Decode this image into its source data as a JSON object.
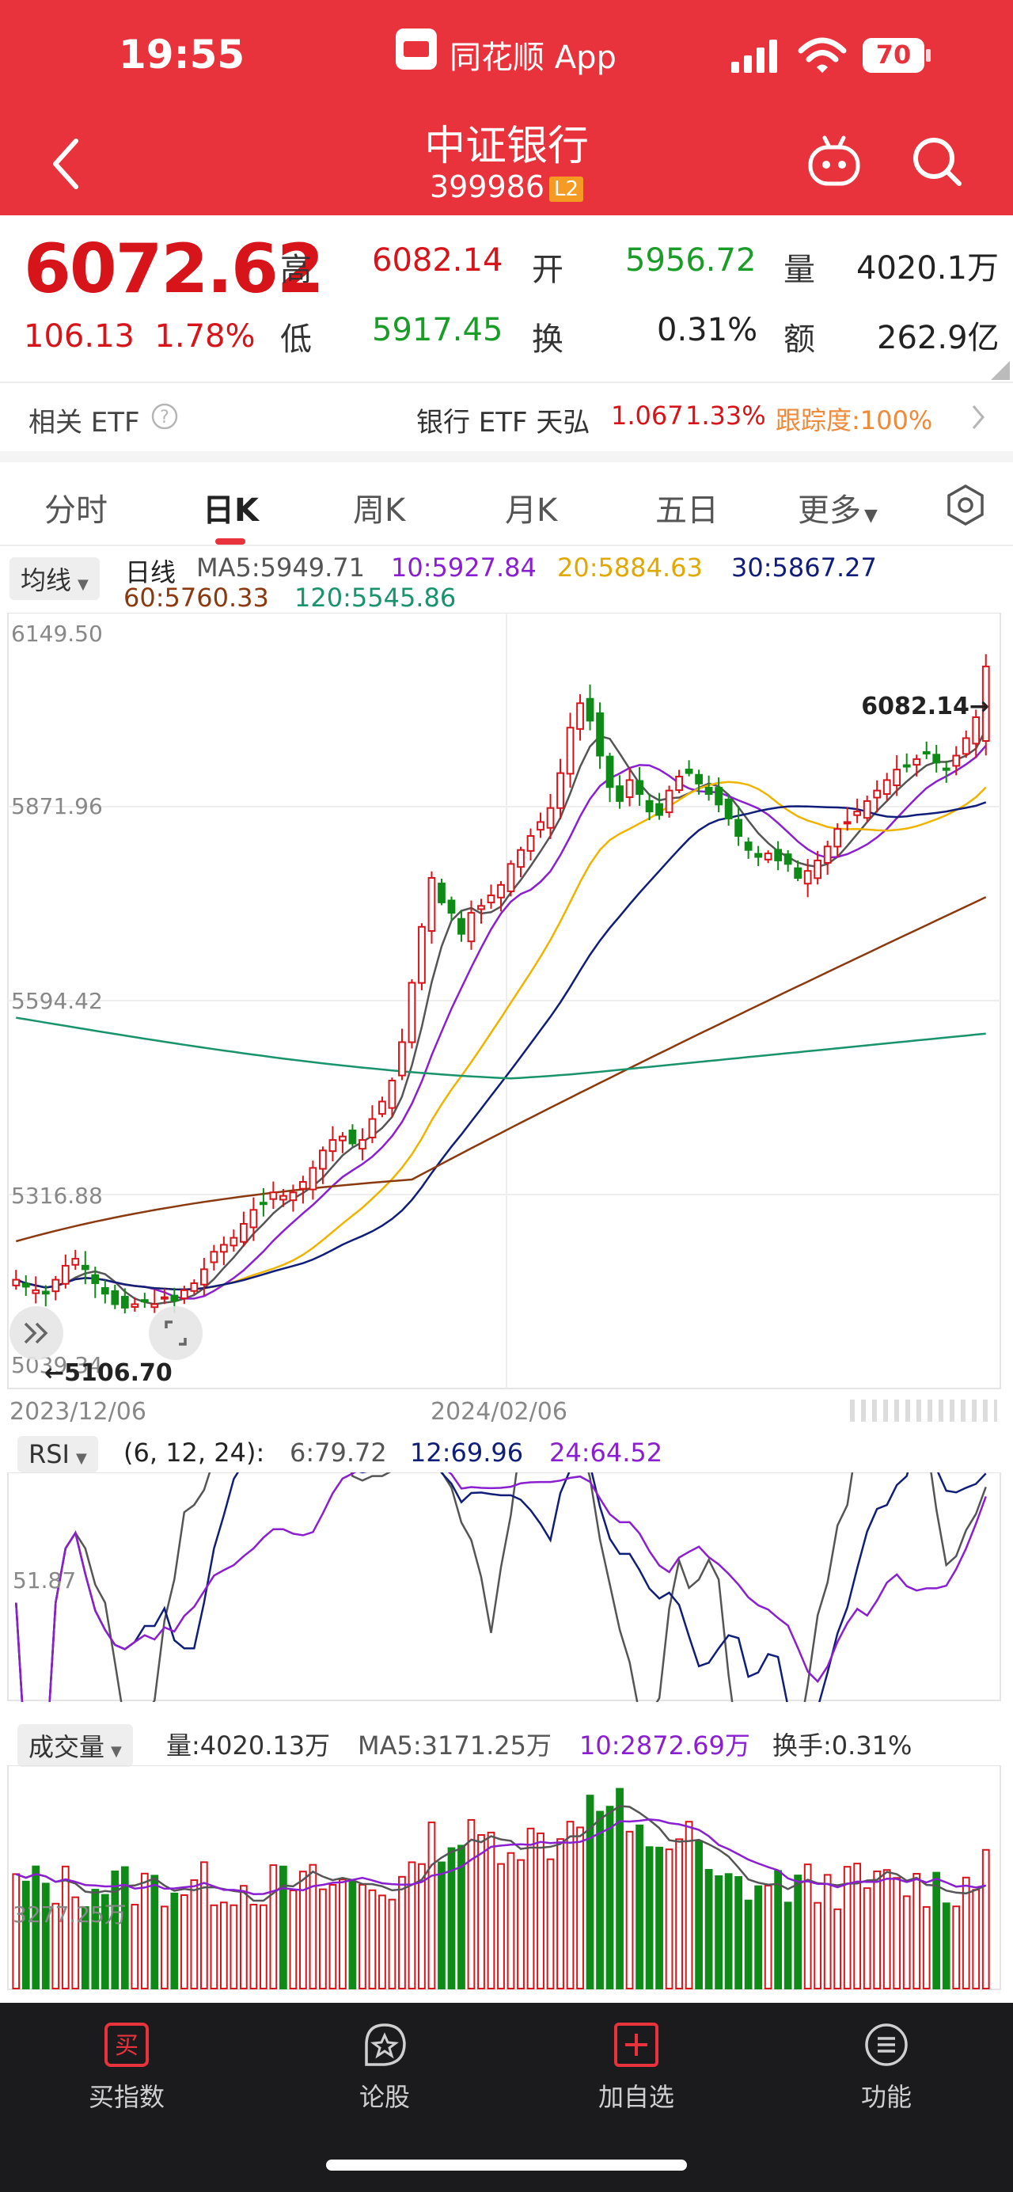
{
  "status_bar": {
    "time": "19:55",
    "app_name": "同花顺 App",
    "battery": "70"
  },
  "header": {
    "title": "中证银行",
    "code": "399986",
    "level_tag": "L2"
  },
  "quote": {
    "price": "6072.62",
    "change": "106.13",
    "change_pct": "1.78%",
    "high_label": "高",
    "high": "6082.14",
    "low_label": "低",
    "low": "5917.45",
    "open_label": "开",
    "open": "5956.72",
    "turnover_label": "换",
    "turnover": "0.31%",
    "volume_label": "量",
    "volume": "4020.1万",
    "amount_label": "额",
    "amount": "262.9亿"
  },
  "etf_row": {
    "label": "相关 ETF",
    "name": "银行 ETF 天弘",
    "price": "1.067",
    "pct": "1.33%",
    "tracking": "跟踪度:100%"
  },
  "tabs": [
    "分时",
    "日K",
    "周K",
    "月K",
    "五日",
    "更多"
  ],
  "active_tab": "日K",
  "kline": {
    "selector": "均线",
    "legend": {
      "period": "日线",
      "ma5": "MA5:5949.71",
      "ma10": "10:5927.84",
      "ma20": "20:5884.63",
      "ma30": "30:5867.27",
      "ma60": "60:5760.33",
      "ma120": "120:5545.86"
    },
    "y_labels": [
      "6149.50",
      "5871.96",
      "5594.42",
      "5316.88",
      "5039.34"
    ],
    "high_marker": "6082.14→",
    "low_marker": "←5106.70",
    "x_labels": [
      "2023/12/06",
      "2024/02/06"
    ],
    "colors": {
      "up": "#d7141a",
      "down": "#0e8a16",
      "ma5": "#555555",
      "ma10": "#8a1fd1",
      "ma20": "#f0b400",
      "ma30": "#101e7a",
      "ma60": "#8b3a0f",
      "ma120": "#18936a"
    }
  },
  "rsi": {
    "selector": "RSI",
    "params": "(6, 12, 24):",
    "rsi6": "6:79.72",
    "rsi12": "12:69.96",
    "rsi24": "24:64.52",
    "y_label": "51.87"
  },
  "volume": {
    "selector": "成交量",
    "vol": "量:4020.13万",
    "ma5": "MA5:3171.25万",
    "ma10": "10:2872.69万",
    "turnover": "换手:0.31%",
    "y_label": "3277.25万"
  },
  "bottom_nav": [
    "买指数",
    "论股",
    "加自选",
    "功能"
  ],
  "chart_data": [
    {
      "type": "candlestick",
      "title": "中证银行 日K",
      "ylim": [
        5039.34,
        6149.5
      ],
      "x_labels": [
        "2023/12/06",
        "2024/02/06"
      ],
      "annotations": {
        "high": 6082.14,
        "low": 5106.7
      },
      "ohlc_closes_approx": [
        5195,
        5185,
        5180,
        5175,
        5195,
        5215,
        5225,
        5210,
        5190,
        5175,
        5160,
        5155,
        5160,
        5165,
        5160,
        5170,
        5165,
        5180,
        5190,
        5210,
        5235,
        5245,
        5255,
        5275,
        5295,
        5305,
        5320,
        5315,
        5320,
        5335,
        5355,
        5380,
        5395,
        5400,
        5390,
        5395,
        5425,
        5450,
        5480,
        5535,
        5620,
        5700,
        5770,
        5735,
        5720,
        5690,
        5720,
        5730,
        5745,
        5760,
        5790,
        5810,
        5830,
        5850,
        5870,
        5920,
        5985,
        6020,
        5995,
        5945,
        5900,
        5880,
        5910,
        5890,
        5865,
        5860,
        5895,
        5915,
        5920,
        5905,
        5890,
        5875,
        5855,
        5830,
        5810,
        5800,
        5805,
        5795,
        5790,
        5770,
        5780,
        5795,
        5815,
        5840,
        5850,
        5865,
        5880,
        5895,
        5910,
        5925,
        5930,
        5940,
        5950,
        5935,
        5925,
        5945,
        5970,
        6000,
        6072.62
      ],
      "ma": {
        "MA5": 5949.71,
        "MA10": 5927.84,
        "MA20": 5884.63,
        "MA30": 5867.27,
        "MA60": 5760.33,
        "MA120": 5545.86
      }
    },
    {
      "type": "line",
      "title": "RSI (6, 12, 24)",
      "series": [
        {
          "name": "6",
          "last": 79.72
        },
        {
          "name": "12",
          "last": 69.96
        },
        {
          "name": "24",
          "last": 64.52
        }
      ],
      "reference": 51.87
    },
    {
      "type": "bar",
      "title": "成交量",
      "series": [
        {
          "name": "量",
          "last": "4020.13万"
        },
        {
          "name": "MA5",
          "last": "3171.25万"
        },
        {
          "name": "10",
          "last": "2872.69万"
        }
      ],
      "reference": "3277.25万"
    }
  ]
}
